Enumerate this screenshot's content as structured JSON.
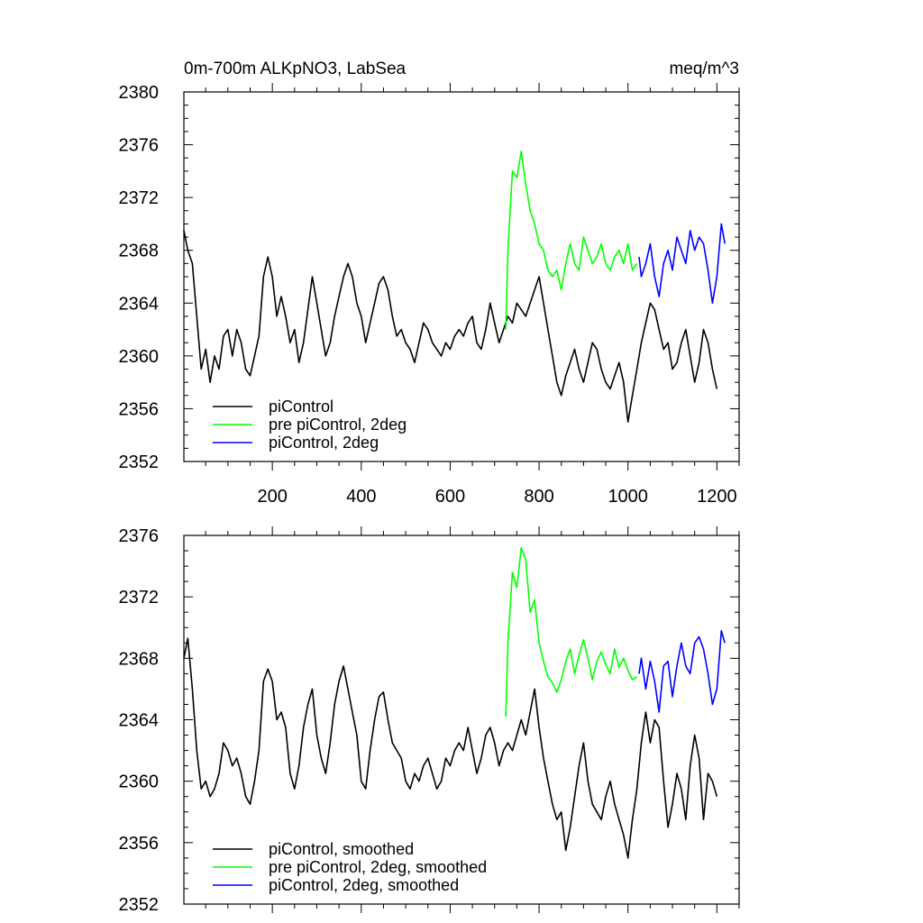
{
  "figure": {
    "title_left": "0m-700m ALKpNO3, LabSea",
    "title_right": "meq/m^3"
  },
  "chart_data": [
    {
      "type": "line",
      "title": "0m-700m ALKpNO3, LabSea",
      "units": "meq/m^3",
      "xlim": [
        1,
        1250
      ],
      "ylim": [
        2352,
        2380
      ],
      "x_ticks": [
        200,
        400,
        600,
        800,
        1000,
        1200
      ],
      "y_ticks": [
        2352,
        2356,
        2360,
        2364,
        2368,
        2372,
        2376,
        2380
      ],
      "grid": false,
      "legend_position": "bottom-left",
      "series": [
        {
          "name": "piControl",
          "color": "#000000",
          "x": [
            1,
            10,
            20,
            30,
            40,
            50,
            60,
            70,
            80,
            90,
            100,
            110,
            120,
            130,
            140,
            150,
            160,
            170,
            180,
            190,
            200,
            210,
            220,
            230,
            240,
            250,
            260,
            270,
            280,
            290,
            300,
            310,
            320,
            330,
            340,
            350,
            360,
            370,
            380,
            390,
            400,
            410,
            420,
            430,
            440,
            450,
            460,
            470,
            480,
            490,
            500,
            510,
            520,
            530,
            540,
            550,
            560,
            570,
            580,
            590,
            600,
            610,
            620,
            630,
            640,
            650,
            660,
            670,
            680,
            690,
            700,
            710,
            720,
            730,
            740,
            750,
            760,
            770,
            780,
            790,
            800,
            810,
            820,
            830,
            840,
            850,
            860,
            870,
            880,
            890,
            900,
            910,
            920,
            930,
            940,
            950,
            960,
            970,
            980,
            990,
            1000,
            1010,
            1020,
            1030,
            1040,
            1050,
            1060,
            1070,
            1080,
            1090,
            1100,
            1110,
            1120,
            1130,
            1140,
            1150,
            1160,
            1170,
            1180,
            1190,
            1200
          ],
          "y": [
            2369.5,
            2368.0,
            2367.0,
            2363.0,
            2359.0,
            2360.5,
            2358.0,
            2360.0,
            2359.0,
            2361.5,
            2362.0,
            2360.0,
            2362.0,
            2361.0,
            2359.0,
            2358.5,
            2360.0,
            2361.5,
            2366.0,
            2367.5,
            2366.0,
            2363.0,
            2364.5,
            2363.0,
            2361.0,
            2362.0,
            2359.5,
            2361.0,
            2363.5,
            2366.0,
            2364.0,
            2362.0,
            2360.0,
            2361.0,
            2363.0,
            2364.5,
            2366.0,
            2367.0,
            2366.0,
            2364.0,
            2363.0,
            2361.0,
            2362.5,
            2364.0,
            2365.5,
            2366.0,
            2365.0,
            2363.0,
            2361.5,
            2362.0,
            2361.0,
            2360.5,
            2359.5,
            2361.0,
            2362.5,
            2362.0,
            2361.0,
            2360.5,
            2360.0,
            2361.0,
            2360.5,
            2361.5,
            2362.0,
            2361.5,
            2362.5,
            2363.0,
            2361.0,
            2360.5,
            2362.0,
            2364.0,
            2362.5,
            2361.0,
            2362.0,
            2363.0,
            2362.5,
            2364.0,
            2363.5,
            2363.0,
            2364.0,
            2365.0,
            2366.0,
            2364.0,
            2362.0,
            2360.0,
            2358.0,
            2357.0,
            2358.5,
            2359.5,
            2360.5,
            2359.0,
            2358.0,
            2359.5,
            2361.0,
            2360.5,
            2359.0,
            2358.0,
            2357.5,
            2358.5,
            2359.5,
            2358.0,
            2355.0,
            2357.0,
            2359.0,
            2361.0,
            2362.5,
            2364.0,
            2363.5,
            2362.0,
            2360.5,
            2361.0,
            2359.0,
            2359.5,
            2361.0,
            2362.0,
            2360.0,
            2358.0,
            2359.5,
            2362.0,
            2361.0,
            2359.0,
            2357.5
          ]
        },
        {
          "name": "pre piControl, 2deg",
          "color": "#00ff00",
          "x": [
            725,
            730,
            740,
            750,
            760,
            770,
            780,
            790,
            800,
            810,
            820,
            830,
            840,
            850,
            860,
            870,
            880,
            890,
            900,
            910,
            920,
            930,
            940,
            950,
            960,
            970,
            980,
            990,
            1000,
            1010,
            1020
          ],
          "y": [
            2362.0,
            2368.0,
            2374.0,
            2373.5,
            2375.5,
            2373.0,
            2371.0,
            2370.0,
            2368.5,
            2368.0,
            2366.5,
            2366.0,
            2366.5,
            2365.0,
            2367.0,
            2368.5,
            2367.0,
            2366.5,
            2369.0,
            2368.0,
            2367.0,
            2367.5,
            2368.5,
            2367.0,
            2366.5,
            2367.5,
            2368.0,
            2367.0,
            2368.5,
            2366.5,
            2367.0
          ]
        },
        {
          "name": "piControl, 2deg",
          "color": "#0000ff",
          "x": [
            1025,
            1030,
            1040,
            1050,
            1060,
            1070,
            1080,
            1090,
            1100,
            1110,
            1120,
            1130,
            1140,
            1150,
            1160,
            1170,
            1180,
            1190,
            1200,
            1210,
            1218
          ],
          "y": [
            2367.5,
            2366.0,
            2367.0,
            2368.5,
            2366.0,
            2364.5,
            2367.0,
            2368.0,
            2366.5,
            2369.0,
            2368.0,
            2367.0,
            2369.5,
            2368.0,
            2369.0,
            2368.5,
            2366.5,
            2364.0,
            2366.0,
            2370.0,
            2368.5
          ]
        }
      ]
    },
    {
      "type": "line",
      "xlim": [
        1,
        1250
      ],
      "ylim": [
        2352,
        2376
      ],
      "x_ticks": [
        200,
        400,
        600,
        800,
        1000,
        1200
      ],
      "y_ticks": [
        2352,
        2356,
        2360,
        2364,
        2368,
        2372,
        2376
      ],
      "grid": false,
      "legend_position": "bottom-left",
      "series": [
        {
          "name": "piControl, smoothed",
          "color": "#000000",
          "x": [
            1,
            10,
            20,
            30,
            40,
            50,
            60,
            70,
            80,
            90,
            100,
            110,
            120,
            130,
            140,
            150,
            160,
            170,
            180,
            190,
            200,
            210,
            220,
            230,
            240,
            250,
            260,
            270,
            280,
            290,
            300,
            310,
            320,
            330,
            340,
            350,
            360,
            370,
            380,
            390,
            400,
            410,
            420,
            430,
            440,
            450,
            460,
            470,
            480,
            490,
            500,
            510,
            520,
            530,
            540,
            550,
            560,
            570,
            580,
            590,
            600,
            610,
            620,
            630,
            640,
            650,
            660,
            670,
            680,
            690,
            700,
            710,
            720,
            730,
            740,
            750,
            760,
            770,
            780,
            790,
            800,
            810,
            820,
            830,
            840,
            850,
            860,
            870,
            880,
            890,
            900,
            910,
            920,
            930,
            940,
            950,
            960,
            970,
            980,
            990,
            1000,
            1010,
            1020,
            1030,
            1040,
            1050,
            1060,
            1070,
            1080,
            1090,
            1100,
            1110,
            1120,
            1130,
            1140,
            1150,
            1160,
            1170,
            1180,
            1190,
            1200
          ],
          "y": [
            2368.0,
            2369.3,
            2366.0,
            2362.0,
            2359.5,
            2360.0,
            2359.0,
            2359.5,
            2360.5,
            2362.5,
            2362.0,
            2361.0,
            2361.5,
            2360.5,
            2359.0,
            2358.5,
            2360.0,
            2362.0,
            2366.5,
            2367.3,
            2366.5,
            2364.0,
            2364.5,
            2363.5,
            2360.5,
            2359.5,
            2361.0,
            2363.5,
            2365.0,
            2366.0,
            2363.0,
            2361.5,
            2360.5,
            2362.5,
            2365.0,
            2366.5,
            2367.5,
            2366.0,
            2364.5,
            2363.0,
            2360.0,
            2359.5,
            2362.0,
            2364.0,
            2365.5,
            2365.8,
            2364.0,
            2362.5,
            2362.0,
            2361.5,
            2360.0,
            2359.5,
            2360.5,
            2360.0,
            2361.0,
            2361.5,
            2360.5,
            2359.5,
            2360.0,
            2361.5,
            2361.0,
            2362.0,
            2362.5,
            2362.0,
            2363.5,
            2362.0,
            2360.5,
            2361.5,
            2363.0,
            2363.5,
            2362.5,
            2361.0,
            2362.0,
            2362.5,
            2362.0,
            2363.0,
            2364.0,
            2363.0,
            2364.5,
            2366.0,
            2363.5,
            2361.5,
            2360.0,
            2358.5,
            2357.5,
            2358.0,
            2355.5,
            2357.0,
            2359.0,
            2361.0,
            2362.5,
            2360.0,
            2358.5,
            2358.0,
            2357.5,
            2359.0,
            2360.0,
            2358.5,
            2357.5,
            2356.5,
            2355.0,
            2357.5,
            2359.5,
            2362.5,
            2364.5,
            2362.5,
            2364.0,
            2363.5,
            2360.0,
            2357.0,
            2358.5,
            2360.5,
            2359.5,
            2357.5,
            2361.0,
            2363.0,
            2361.5,
            2357.5,
            2360.5,
            2360.0,
            2359.0
          ]
        },
        {
          "name": "pre piControl, 2deg, smoothed",
          "color": "#00ff00",
          "x": [
            725,
            730,
            740,
            750,
            760,
            770,
            780,
            790,
            800,
            810,
            820,
            830,
            840,
            850,
            860,
            870,
            880,
            890,
            900,
            910,
            920,
            930,
            940,
            950,
            960,
            970,
            980,
            990,
            1000,
            1010,
            1020
          ],
          "y": [
            2364.2,
            2369.0,
            2373.6,
            2372.6,
            2375.2,
            2374.4,
            2371.0,
            2371.8,
            2369.0,
            2367.8,
            2366.8,
            2366.4,
            2365.8,
            2366.6,
            2367.8,
            2368.6,
            2367.0,
            2368.2,
            2369.2,
            2368.0,
            2366.6,
            2367.8,
            2368.4,
            2367.6,
            2367.0,
            2368.6,
            2367.4,
            2368.0,
            2367.2,
            2366.6,
            2366.8
          ]
        },
        {
          "name": "piControl, 2deg, smoothed",
          "color": "#0000ff",
          "x": [
            1025,
            1030,
            1040,
            1050,
            1060,
            1070,
            1080,
            1090,
            1100,
            1110,
            1120,
            1130,
            1140,
            1150,
            1160,
            1170,
            1180,
            1190,
            1200,
            1210,
            1218
          ],
          "y": [
            2367.0,
            2368.0,
            2366.0,
            2367.8,
            2366.5,
            2364.5,
            2367.5,
            2367.8,
            2365.5,
            2367.5,
            2369.0,
            2367.5,
            2367.0,
            2369.0,
            2369.4,
            2368.6,
            2367.0,
            2365.0,
            2366.0,
            2369.8,
            2369.0
          ]
        }
      ]
    }
  ]
}
